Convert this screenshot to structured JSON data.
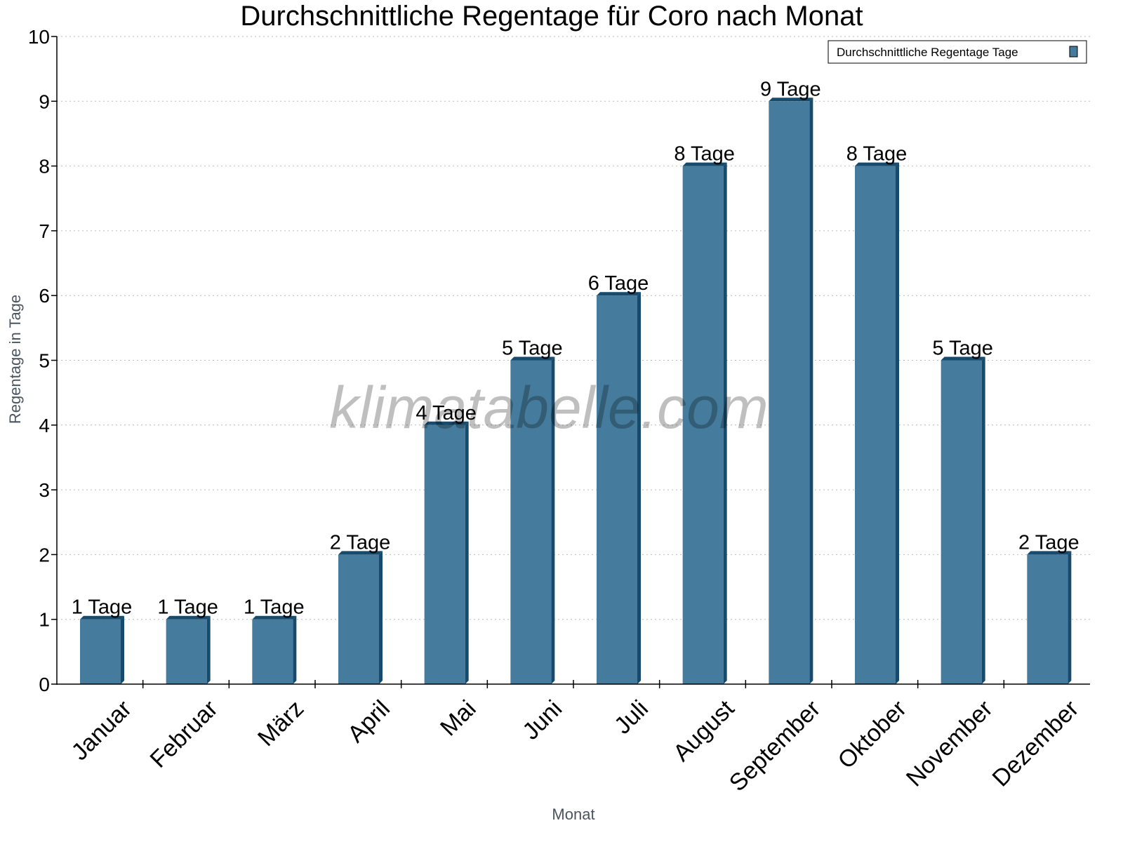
{
  "chart_data": {
    "type": "bar",
    "title": "Durchschnittliche Regentage für Coro nach Monat",
    "xlabel": "Monat",
    "ylabel": "Regentage in Tage",
    "ylim": [
      0,
      10
    ],
    "yticks": [
      "0",
      "1",
      "2",
      "3",
      "4",
      "5",
      "6",
      "7",
      "8",
      "9",
      "10"
    ],
    "grid": true,
    "legend_placement": "top-right",
    "categories": [
      "Januar",
      "Februar",
      "März",
      "April",
      "Mai",
      "Juni",
      "Juli",
      "August",
      "September",
      "Oktober",
      "November",
      "Dezember"
    ],
    "series": [
      {
        "name": "Durchschnittliche Regentage Tage",
        "values": [
          1,
          1,
          1,
          2,
          4,
          5,
          6,
          8,
          9,
          8,
          5,
          2
        ],
        "data_labels": [
          "1 Tage",
          "1 Tage",
          "1 Tage",
          "2 Tage",
          "4 Tage",
          "5 Tage",
          "6 Tage",
          "8 Tage",
          "9 Tage",
          "8 Tage",
          "5 Tage",
          "2 Tage"
        ],
        "color": "#457b9d",
        "side_color": "#174a6b"
      }
    ],
    "watermark": "klimatabelle.com"
  }
}
